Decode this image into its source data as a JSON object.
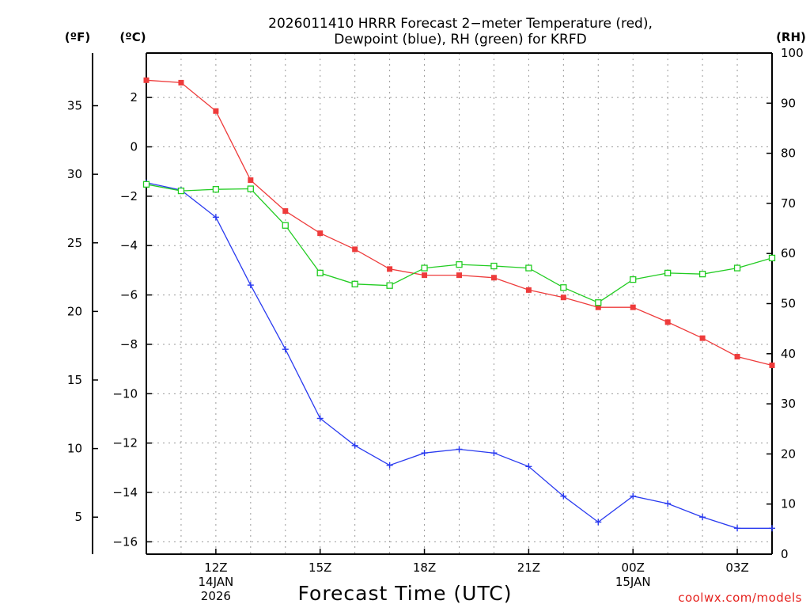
{
  "chart_data": {
    "type": "line",
    "title_line1": "2026011410 HRRR Forecast 2−meter Temperature (red),",
    "title_line2": "Dewpoint (blue), RH (green) for KRFD",
    "xlabel": "Forecast Time (UTC)",
    "credit": "coolwx.com/models",
    "unit_labels": {
      "fahrenheit": "(ºF)",
      "celsius": "(ºC)",
      "rh": "(RH)"
    },
    "x_hours": [
      10,
      11,
      12,
      13,
      14,
      15,
      16,
      17,
      18,
      19,
      20,
      21,
      22,
      23,
      24,
      25,
      26,
      27,
      28
    ],
    "x_ticks": [
      {
        "hour": 12,
        "lines": [
          "12Z",
          "14JAN",
          "2026"
        ]
      },
      {
        "hour": 15,
        "lines": [
          "15Z"
        ]
      },
      {
        "hour": 18,
        "lines": [
          "18Z"
        ]
      },
      {
        "hour": 21,
        "lines": [
          "21Z"
        ]
      },
      {
        "hour": 24,
        "lines": [
          "00Z",
          "15JAN"
        ]
      },
      {
        "hour": 27,
        "lines": [
          "03Z"
        ]
      }
    ],
    "x_range": [
      10,
      28
    ],
    "celsius_axis": {
      "range": [
        -16.5,
        3.8
      ],
      "ticks": [
        2,
        0,
        -2,
        -4,
        -6,
        -8,
        -10,
        -12,
        -14,
        -16
      ]
    },
    "fahrenheit_axis": {
      "ticks": [
        35,
        30,
        25,
        20,
        15,
        10,
        5
      ]
    },
    "rh_axis": {
      "range": [
        0,
        100
      ],
      "ticks": [
        100,
        90,
        80,
        70,
        60,
        50,
        40,
        30,
        20,
        10,
        0
      ]
    },
    "series": [
      {
        "name": "Temperature",
        "units": "C",
        "axis": "celsius",
        "color": "#ee3b3b",
        "marker": "filled-square",
        "values": [
          2.7,
          2.6,
          1.45,
          -1.35,
          -2.6,
          -3.5,
          -4.15,
          -4.95,
          -5.2,
          -5.2,
          -5.3,
          -5.8,
          -6.1,
          -6.5,
          -6.5,
          -7.1,
          -7.75,
          -8.5,
          -8.85
        ]
      },
      {
        "name": "Dewpoint",
        "units": "C",
        "axis": "celsius",
        "color": "#2a3bf0",
        "marker": "plus",
        "values": [
          -1.45,
          -1.75,
          -2.85,
          -5.6,
          -8.2,
          -11.0,
          -12.1,
          -12.9,
          -12.4,
          -12.25,
          -12.4,
          -12.95,
          -14.15,
          -15.2,
          -14.15,
          -14.45,
          -15.0,
          -15.45,
          -15.45
        ]
      },
      {
        "name": "RH",
        "units": "%",
        "axis": "rh",
        "color": "#22cc22",
        "marker": "open-square",
        "values": [
          73.8,
          72.5,
          72.8,
          72.9,
          65.6,
          56.1,
          53.9,
          53.6,
          57.1,
          57.8,
          57.5,
          57.1,
          53.2,
          50.2,
          54.8,
          56.1,
          55.9,
          57.1,
          59.1
        ]
      }
    ]
  }
}
